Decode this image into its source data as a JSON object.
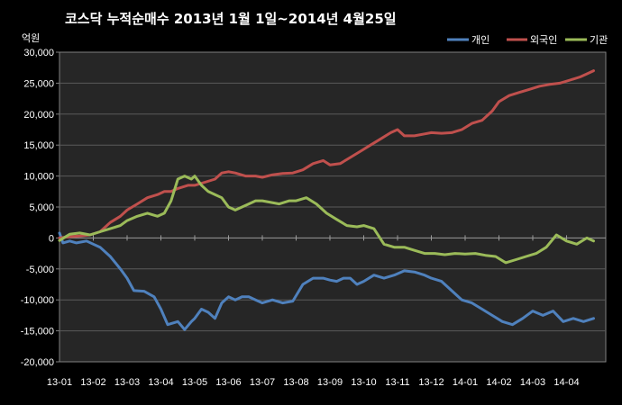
{
  "chart_data": {
    "type": "line",
    "title": "코스닥  누적순매수 2013년 1월 1일~2014년 4월25일",
    "ylabel": "억원",
    "ylim": [
      -20000,
      30000
    ],
    "yticks": [
      30000,
      25000,
      20000,
      15000,
      10000,
      5000,
      0,
      -5000,
      -10000,
      -15000,
      -20000
    ],
    "ytick_labels": [
      "30,000",
      "25,000",
      "20,000",
      "15,000",
      "10,000",
      "5,000",
      "0",
      "-5,000",
      "-10,000",
      "-15,000",
      "-20,000"
    ],
    "x_labels": [
      "13-01",
      "13-02",
      "13-03",
      "13-04",
      "13-05",
      "13-06",
      "13-07",
      "13-08",
      "13-09",
      "13-10",
      "13-11",
      "13-12",
      "14-01",
      "14-02",
      "14-03",
      "14-04"
    ],
    "x_label_pos": [
      0,
      1,
      2,
      3,
      4,
      5,
      6,
      7,
      8,
      9,
      10,
      11,
      12,
      13,
      14,
      15
    ],
    "xlim": [
      0,
      15.8
    ],
    "grid": "horizontal",
    "legend_position": "top-right",
    "series": [
      {
        "name": "개인",
        "color": "#4f81bd",
        "x": [
          0,
          0.1,
          0.3,
          0.5,
          0.8,
          1.0,
          1.2,
          1.5,
          1.8,
          2.0,
          2.2,
          2.5,
          2.8,
          3.0,
          3.2,
          3.5,
          3.7,
          3.9,
          4.0,
          4.2,
          4.4,
          4.6,
          4.8,
          5.0,
          5.2,
          5.4,
          5.6,
          5.8,
          6.0,
          6.3,
          6.6,
          6.9,
          7.2,
          7.5,
          7.8,
          8.0,
          8.2,
          8.4,
          8.6,
          8.8,
          9.0,
          9.3,
          9.6,
          9.9,
          10.2,
          10.5,
          10.8,
          11.0,
          11.3,
          11.6,
          11.9,
          12.2,
          12.5,
          12.8,
          13.1,
          13.4,
          13.7,
          14.0,
          14.3,
          14.6,
          14.9,
          15.2,
          15.5,
          15.8
        ],
        "values": [
          800,
          -800,
          -500,
          -800,
          -500,
          -1000,
          -1500,
          -3000,
          -5000,
          -6500,
          -8500,
          -8600,
          -9500,
          -11500,
          -14000,
          -13500,
          -14800,
          -13500,
          -13000,
          -11500,
          -12000,
          -13000,
          -10500,
          -9500,
          -10000,
          -9500,
          -9500,
          -10000,
          -10500,
          -10000,
          -10500,
          -10200,
          -7500,
          -6500,
          -6500,
          -6800,
          -7000,
          -6500,
          -6500,
          -7500,
          -7000,
          -6000,
          -6500,
          -6000,
          -5300,
          -5500,
          -6000,
          -6500,
          -7000,
          -8500,
          -10000,
          -10500,
          -11500,
          -12500,
          -13500,
          -14000,
          -13000,
          -11800,
          -12500,
          -11800,
          -13500,
          -13000,
          -13500,
          -13000
        ]
      },
      {
        "name": "외국인",
        "color": "#c0504d",
        "x": [
          0,
          0.3,
          0.6,
          0.9,
          1.2,
          1.5,
          1.8,
          2.0,
          2.3,
          2.6,
          2.9,
          3.1,
          3.3,
          3.5,
          3.8,
          4.0,
          4.3,
          4.6,
          4.8,
          5.0,
          5.2,
          5.5,
          5.8,
          6.0,
          6.3,
          6.6,
          6.9,
          7.2,
          7.5,
          7.8,
          8.0,
          8.3,
          8.6,
          8.9,
          9.2,
          9.5,
          9.8,
          10.0,
          10.2,
          10.5,
          10.8,
          11.0,
          11.3,
          11.6,
          11.9,
          12.2,
          12.5,
          12.8,
          13.0,
          13.3,
          13.6,
          13.9,
          14.2,
          14.5,
          14.8,
          15.1,
          15.4,
          15.6,
          15.8
        ],
        "values": [
          0,
          200,
          300,
          500,
          1000,
          2500,
          3500,
          4500,
          5500,
          6500,
          7000,
          7500,
          7500,
          8000,
          8500,
          8500,
          9000,
          9500,
          10500,
          10700,
          10500,
          10000,
          10000,
          9800,
          10200,
          10400,
          10500,
          11000,
          12000,
          12500,
          11800,
          12000,
          13000,
          14000,
          15000,
          16000,
          17000,
          17500,
          16500,
          16500,
          16800,
          17000,
          16900,
          17000,
          17500,
          18500,
          19000,
          20500,
          22000,
          23000,
          23500,
          24000,
          24500,
          24800,
          25000,
          25500,
          26000,
          26500,
          27000
        ]
      },
      {
        "name": "기관",
        "color": "#9bbb59",
        "x": [
          0,
          0.3,
          0.6,
          0.9,
          1.2,
          1.5,
          1.8,
          2.0,
          2.3,
          2.6,
          2.9,
          3.1,
          3.3,
          3.5,
          3.7,
          3.9,
          4.0,
          4.2,
          4.4,
          4.6,
          4.8,
          5.0,
          5.2,
          5.4,
          5.6,
          5.8,
          6.0,
          6.2,
          6.5,
          6.8,
          7.0,
          7.3,
          7.6,
          7.9,
          8.2,
          8.5,
          8.8,
          9.0,
          9.3,
          9.6,
          9.9,
          10.2,
          10.5,
          10.8,
          11.1,
          11.4,
          11.7,
          12.0,
          12.3,
          12.6,
          12.9,
          13.2,
          13.5,
          13.8,
          14.1,
          14.4,
          14.7,
          15.0,
          15.3,
          15.6,
          15.8
        ],
        "values": [
          -400,
          600,
          800,
          500,
          1000,
          1500,
          2000,
          2800,
          3500,
          4000,
          3500,
          4000,
          6000,
          9500,
          10000,
          9500,
          10000,
          8500,
          7500,
          7000,
          6500,
          5000,
          4500,
          5000,
          5500,
          6000,
          6000,
          5800,
          5500,
          6000,
          6000,
          6500,
          5500,
          4000,
          3000,
          2000,
          1800,
          2000,
          1500,
          -1000,
          -1500,
          -1500,
          -2000,
          -2500,
          -2500,
          -2700,
          -2500,
          -2600,
          -2500,
          -2800,
          -3000,
          -4000,
          -3500,
          -3000,
          -2500,
          -1500,
          500,
          -500,
          -1000,
          0,
          -500
        ]
      }
    ]
  }
}
